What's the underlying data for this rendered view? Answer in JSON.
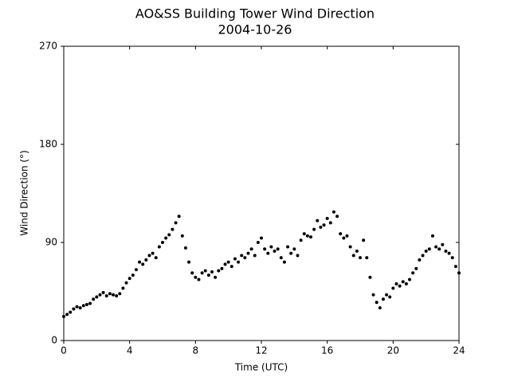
{
  "chart_data": {
    "type": "scatter",
    "title": "AO&SS Building Tower Wind Direction",
    "subtitle": "2004-10-26",
    "x_label": "Time (UTC)",
    "y_label": "Wind Direction (°)",
    "color": "#000000",
    "xlim": [
      0,
      24
    ],
    "xticks": [
      0,
      4,
      8,
      12,
      16,
      20,
      24
    ],
    "ylim": [
      0,
      270
    ],
    "yticks": [
      0,
      90,
      180,
      270
    ],
    "grid": false,
    "x": [
      0,
      0.2,
      0.4,
      0.6,
      0.8,
      1.0,
      1.2,
      1.4,
      1.6,
      1.8,
      2.0,
      2.2,
      2.4,
      2.6,
      2.8,
      3.0,
      3.2,
      3.4,
      3.6,
      3.8,
      4.0,
      4.2,
      4.4,
      4.6,
      4.8,
      5.0,
      5.2,
      5.4,
      5.6,
      5.8,
      6.0,
      6.2,
      6.4,
      6.6,
      6.8,
      7.0,
      7.2,
      7.4,
      7.6,
      7.8,
      8.0,
      8.2,
      8.4,
      8.6,
      8.8,
      9.0,
      9.2,
      9.4,
      9.6,
      9.8,
      10.0,
      10.2,
      10.4,
      10.6,
      10.8,
      11.0,
      11.2,
      11.4,
      11.6,
      11.8,
      12.0,
      12.2,
      12.4,
      12.6,
      12.8,
      13.0,
      13.2,
      13.4,
      13.6,
      13.8,
      14.0,
      14.2,
      14.4,
      14.6,
      14.8,
      15.0,
      15.2,
      15.4,
      15.6,
      15.8,
      16.0,
      16.2,
      16.4,
      16.6,
      16.8,
      17.0,
      17.2,
      17.4,
      17.6,
      17.8,
      18.0,
      18.2,
      18.4,
      18.6,
      18.8,
      19.0,
      19.2,
      19.4,
      19.6,
      19.8,
      20.0,
      20.2,
      20.4,
      20.6,
      20.8,
      21.0,
      21.2,
      21.4,
      21.6,
      21.8,
      22.0,
      22.2,
      22.4,
      22.6,
      22.8,
      23.0,
      23.2,
      23.4,
      23.6,
      23.8,
      24.0
    ],
    "values": [
      22,
      24,
      26,
      29,
      31,
      30,
      32,
      33,
      34,
      38,
      40,
      42,
      44,
      41,
      43,
      42,
      41,
      43,
      48,
      53,
      57,
      60,
      65,
      72,
      70,
      74,
      78,
      80,
      76,
      86,
      90,
      94,
      97,
      102,
      108,
      114,
      96,
      85,
      72,
      62,
      58,
      56,
      62,
      64,
      60,
      63,
      58,
      64,
      66,
      70,
      72,
      68,
      75,
      72,
      78,
      76,
      80,
      84,
      78,
      90,
      94,
      84,
      80,
      86,
      82,
      84,
      76,
      72,
      86,
      80,
      84,
      78,
      92,
      98,
      96,
      95,
      102,
      110,
      104,
      106,
      112,
      108,
      118,
      114,
      98,
      94,
      96,
      86,
      78,
      82,
      76,
      92,
      76,
      58,
      42,
      35,
      30,
      38,
      42,
      40,
      48,
      52,
      50,
      54,
      52,
      56,
      62,
      66,
      74,
      78,
      82,
      84,
      96,
      86,
      84,
      88,
      82,
      80,
      76,
      68,
      62
    ]
  }
}
